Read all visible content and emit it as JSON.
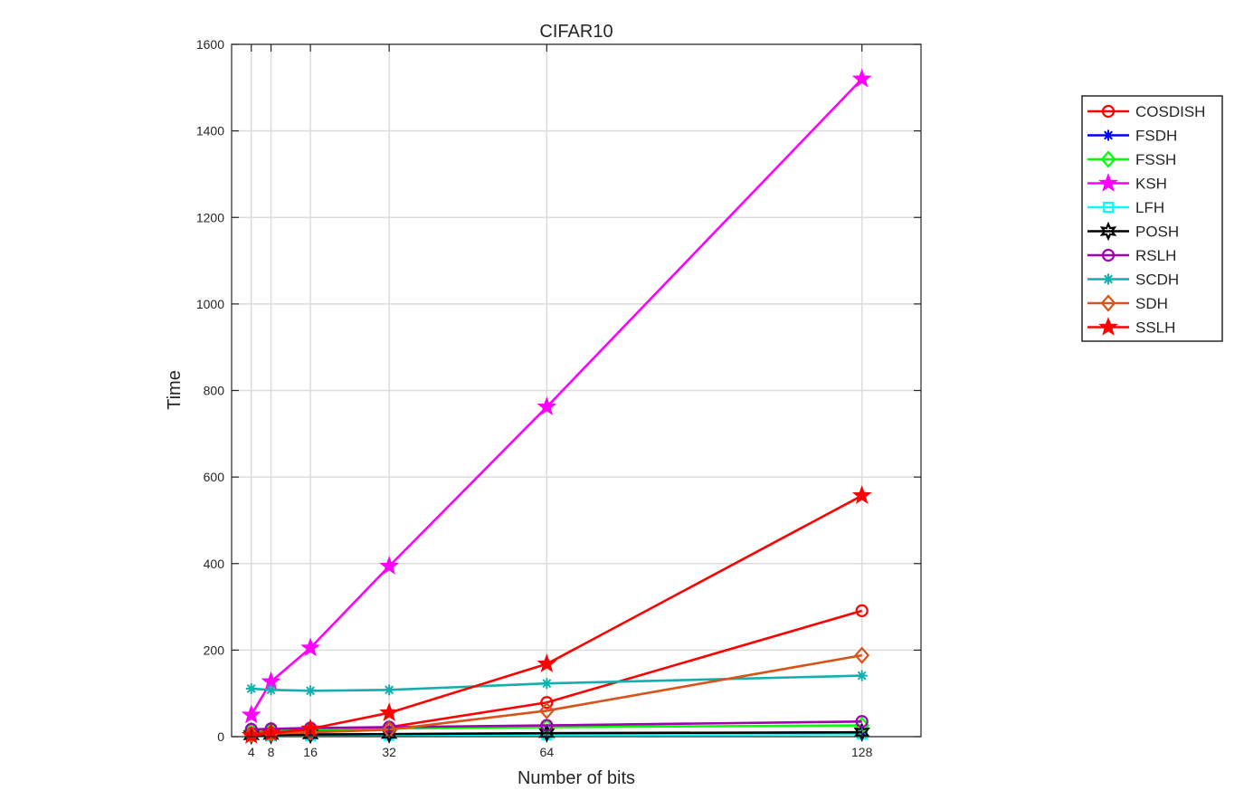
{
  "chart_data": {
    "type": "line",
    "title": "CIFAR10",
    "xlabel": "Number of bits",
    "ylabel": "Time",
    "x": [
      4,
      8,
      16,
      32,
      64,
      128
    ],
    "x_ticks": [
      "4",
      "8",
      "16",
      "32",
      "64",
      "128"
    ],
    "xlim": [
      0,
      140
    ],
    "ylim": [
      0,
      1600
    ],
    "y_ticks": [
      "0",
      "200",
      "400",
      "600",
      "800",
      "1000",
      "1200",
      "1400",
      "1600"
    ],
    "grid": true,
    "legend_position": "outside-right",
    "series": [
      {
        "name": "COSDISH",
        "color": "#ff0000",
        "marker": "circle",
        "values": [
          8,
          10,
          14,
          22,
          79,
          291
        ]
      },
      {
        "name": "FSDH",
        "color": "#0000ff",
        "marker": "asterisk",
        "values": [
          2,
          2,
          3,
          4,
          6,
          10
        ]
      },
      {
        "name": "FSSH",
        "color": "#00ff00",
        "marker": "diamond",
        "values": [
          14,
          15,
          17,
          19,
          22,
          26
        ]
      },
      {
        "name": "KSH",
        "color": "#ff00ff",
        "marker": "star",
        "values": [
          50,
          127,
          205,
          394,
          762,
          1520
        ]
      },
      {
        "name": "LFH",
        "color": "#00ffff",
        "marker": "square",
        "values": [
          1,
          2,
          2,
          3,
          4,
          6
        ]
      },
      {
        "name": "POSH",
        "color": "#000000",
        "marker": "hexagram",
        "values": [
          3,
          4,
          5,
          6,
          8,
          10
        ]
      },
      {
        "name": "RSLH",
        "color": "#a000b0",
        "marker": "circle",
        "values": [
          17,
          18,
          20,
          22,
          26,
          35
        ]
      },
      {
        "name": "SCDH",
        "color": "#13aeae",
        "marker": "asterisk",
        "values": [
          111,
          108,
          106,
          108,
          123,
          141
        ]
      },
      {
        "name": "SDH",
        "color": "#d95319",
        "marker": "diamond",
        "values": [
          5,
          7,
          10,
          16,
          60,
          188
        ]
      },
      {
        "name": "SSLH",
        "color": "#ff0000",
        "marker": "star",
        "values": [
          3,
          8,
          18,
          55,
          168,
          557
        ]
      }
    ]
  }
}
